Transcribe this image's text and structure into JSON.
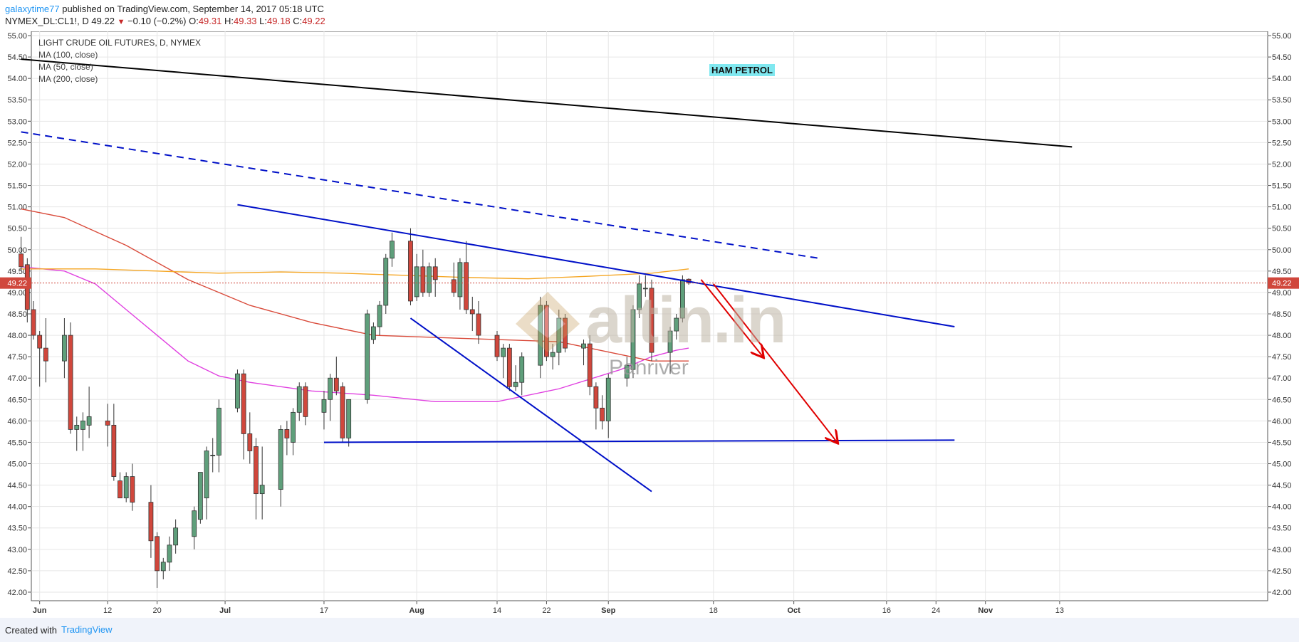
{
  "header": {
    "author": "galaxytime77",
    "published": "published on TradingView.com, September 14, 2017 05:18 UTC",
    "symbol": "NYMEX_DL:CL1!, D",
    "last": "49.22",
    "change": "−0.10 (−0.2%)",
    "o_label": "O:",
    "o": "49.31",
    "h_label": "H:",
    "h": "49.33",
    "l_label": "L:",
    "l": "49.18",
    "c_label": "C:",
    "c": "49.22"
  },
  "footer": {
    "created": "Created with",
    "brand": "TradingView"
  },
  "annotations": {
    "ham_label": "HAM PETROL",
    "watermark_main": "altin.in",
    "watermark_sub": "Panriver"
  },
  "colors": {
    "up": "#5f9f7b",
    "down": "#d0473c",
    "ma100": "#f5a623",
    "ma50": "#d94a3a",
    "ma200": "#e040e0",
    "trend": "#0010c8",
    "arrow": "#e00000"
  },
  "chart_data": {
    "type": "candlestick",
    "title": "LIGHT CRUDE OIL FUTURES, D, NYMEX",
    "legend": [
      "MA (100, close)",
      "MA (50, close)",
      "MA (200, close)"
    ],
    "ylim": [
      41.8,
      55.1
    ],
    "price_line": 49.22,
    "price_label": "49.22",
    "y_ticks": [
      "55.00",
      "54.50",
      "54.00",
      "53.50",
      "53.00",
      "52.50",
      "52.00",
      "51.50",
      "51.00",
      "50.50",
      "50.00",
      "49.50",
      "49.00",
      "48.50",
      "48.00",
      "47.50",
      "47.00",
      "46.50",
      "46.00",
      "45.50",
      "45.00",
      "44.50",
      "44.00",
      "43.50",
      "43.00",
      "42.50",
      "42.00"
    ],
    "x_ticks": [
      {
        "label": "Jun",
        "d": 1
      },
      {
        "label": "12",
        "d": 12
      },
      {
        "label": "20",
        "d": 20
      },
      {
        "label": "Jul",
        "d": 31
      },
      {
        "label": "17",
        "d": 47
      },
      {
        "label": "Aug",
        "d": 62
      },
      {
        "label": "14",
        "d": 75
      },
      {
        "label": "22",
        "d": 83
      },
      {
        "label": "Sep",
        "d": 93
      },
      {
        "label": "18",
        "d": 110
      },
      {
        "label": "Oct",
        "d": 123
      },
      {
        "label": "16",
        "d": 138
      },
      {
        "label": "24",
        "d": 146
      },
      {
        "label": "Nov",
        "d": 154
      },
      {
        "label": "13",
        "d": 166
      }
    ],
    "candles": [
      {
        "d": -2,
        "o": 49.9,
        "h": 50.3,
        "l": 49.5,
        "c": 49.6
      },
      {
        "d": -1,
        "o": 49.65,
        "h": 49.8,
        "l": 48.3,
        "c": 48.6
      },
      {
        "d": 0,
        "o": 48.6,
        "h": 48.8,
        "l": 47.9,
        "c": 48.0
      },
      {
        "d": 1,
        "o": 48.0,
        "h": 48.1,
        "l": 46.8,
        "c": 47.7
      },
      {
        "d": 2,
        "o": 47.7,
        "h": 48.4,
        "l": 46.9,
        "c": 47.4
      },
      {
        "d": 5,
        "o": 47.4,
        "h": 48.4,
        "l": 47.0,
        "c": 48.0
      },
      {
        "d": 6,
        "o": 48.0,
        "h": 48.3,
        "l": 45.7,
        "c": 45.8
      },
      {
        "d": 7,
        "o": 45.8,
        "h": 46.1,
        "l": 45.3,
        "c": 45.9
      },
      {
        "d": 8,
        "o": 45.8,
        "h": 46.2,
        "l": 45.3,
        "c": 46.0
      },
      {
        "d": 9,
        "o": 45.9,
        "h": 46.8,
        "l": 45.6,
        "c": 46.1
      },
      {
        "d": 12,
        "o": 46.0,
        "h": 46.4,
        "l": 45.4,
        "c": 45.9
      },
      {
        "d": 13,
        "o": 45.9,
        "h": 46.4,
        "l": 44.6,
        "c": 44.7
      },
      {
        "d": 14,
        "o": 44.6,
        "h": 44.8,
        "l": 44.2,
        "c": 44.2
      },
      {
        "d": 15,
        "o": 44.2,
        "h": 44.8,
        "l": 44.1,
        "c": 44.7
      },
      {
        "d": 16,
        "o": 44.7,
        "h": 45.0,
        "l": 43.9,
        "c": 44.1
      },
      {
        "d": 19,
        "o": 44.1,
        "h": 44.5,
        "l": 42.8,
        "c": 43.2
      },
      {
        "d": 20,
        "o": 43.3,
        "h": 43.4,
        "l": 42.1,
        "c": 42.5
      },
      {
        "d": 21,
        "o": 42.5,
        "h": 42.8,
        "l": 42.3,
        "c": 42.7
      },
      {
        "d": 22,
        "o": 42.7,
        "h": 43.3,
        "l": 42.5,
        "c": 43.1
      },
      {
        "d": 23,
        "o": 43.1,
        "h": 43.7,
        "l": 42.9,
        "c": 43.5
      },
      {
        "d": 26,
        "o": 43.3,
        "h": 44.0,
        "l": 43.0,
        "c": 43.9
      },
      {
        "d": 27,
        "o": 43.7,
        "h": 44.8,
        "l": 43.6,
        "c": 44.8
      },
      {
        "d": 28,
        "o": 44.2,
        "h": 45.4,
        "l": 43.7,
        "c": 45.3
      },
      {
        "d": 29,
        "o": 45.2,
        "h": 45.6,
        "l": 44.8,
        "c": 45.2
      },
      {
        "d": 30,
        "o": 45.2,
        "h": 46.5,
        "l": 44.8,
        "c": 46.3
      },
      {
        "d": 33,
        "o": 46.3,
        "h": 47.2,
        "l": 46.2,
        "c": 47.1
      },
      {
        "d": 34,
        "o": 47.1,
        "h": 47.2,
        "l": 45.1,
        "c": 45.7
      },
      {
        "d": 35,
        "o": 45.7,
        "h": 46.2,
        "l": 45.0,
        "c": 45.3
      },
      {
        "d": 36,
        "o": 45.4,
        "h": 45.6,
        "l": 43.7,
        "c": 44.3
      },
      {
        "d": 37,
        "o": 44.3,
        "h": 45.4,
        "l": 43.7,
        "c": 44.5
      },
      {
        "d": 40,
        "o": 44.4,
        "h": 45.9,
        "l": 44.0,
        "c": 45.8
      },
      {
        "d": 41,
        "o": 45.8,
        "h": 46.0,
        "l": 45.2,
        "c": 45.6
      },
      {
        "d": 42,
        "o": 45.5,
        "h": 46.3,
        "l": 45.2,
        "c": 46.2
      },
      {
        "d": 43,
        "o": 46.2,
        "h": 46.9,
        "l": 46.0,
        "c": 46.8
      },
      {
        "d": 44,
        "o": 46.8,
        "h": 46.9,
        "l": 45.9,
        "c": 46.1
      },
      {
        "d": 47,
        "o": 46.2,
        "h": 46.7,
        "l": 45.8,
        "c": 46.5
      },
      {
        "d": 48,
        "o": 46.5,
        "h": 47.1,
        "l": 46.0,
        "c": 47.0
      },
      {
        "d": 49,
        "o": 47.0,
        "h": 47.5,
        "l": 46.6,
        "c": 46.7
      },
      {
        "d": 50,
        "o": 46.8,
        "h": 46.9,
        "l": 45.5,
        "c": 45.6
      },
      {
        "d": 51,
        "o": 45.6,
        "h": 46.5,
        "l": 45.4,
        "c": 46.5
      },
      {
        "d": 54,
        "o": 46.5,
        "h": 48.6,
        "l": 46.4,
        "c": 48.5
      },
      {
        "d": 55,
        "o": 47.9,
        "h": 48.3,
        "l": 47.8,
        "c": 48.2
      },
      {
        "d": 56,
        "o": 48.2,
        "h": 48.8,
        "l": 48.0,
        "c": 48.7
      },
      {
        "d": 57,
        "o": 48.7,
        "h": 49.9,
        "l": 48.5,
        "c": 49.8
      },
      {
        "d": 58,
        "o": 49.8,
        "h": 50.4,
        "l": 49.6,
        "c": 50.2
      },
      {
        "d": 61,
        "o": 50.2,
        "h": 50.5,
        "l": 48.7,
        "c": 48.8
      },
      {
        "d": 62,
        "o": 48.9,
        "h": 49.9,
        "l": 48.8,
        "c": 49.6
      },
      {
        "d": 63,
        "o": 49.6,
        "h": 50.0,
        "l": 48.9,
        "c": 49.0
      },
      {
        "d": 64,
        "o": 49.0,
        "h": 49.7,
        "l": 48.9,
        "c": 49.6
      },
      {
        "d": 65,
        "o": 49.6,
        "h": 49.8,
        "l": 48.9,
        "c": 49.3
      },
      {
        "d": 68,
        "o": 49.3,
        "h": 49.7,
        "l": 48.9,
        "c": 49.0
      },
      {
        "d": 69,
        "o": 48.9,
        "h": 49.8,
        "l": 48.6,
        "c": 49.7
      },
      {
        "d": 70,
        "o": 49.7,
        "h": 50.2,
        "l": 48.5,
        "c": 48.6
      },
      {
        "d": 71,
        "o": 48.6,
        "h": 48.9,
        "l": 48.1,
        "c": 48.5
      },
      {
        "d": 72,
        "o": 48.5,
        "h": 48.8,
        "l": 47.8,
        "c": 48.0
      },
      {
        "d": 75,
        "o": 48.0,
        "h": 48.1,
        "l": 47.4,
        "c": 47.5
      },
      {
        "d": 76,
        "o": 47.5,
        "h": 47.8,
        "l": 47.0,
        "c": 47.7
      },
      {
        "d": 77,
        "o": 47.7,
        "h": 47.8,
        "l": 46.7,
        "c": 46.8
      },
      {
        "d": 78,
        "o": 46.8,
        "h": 47.3,
        "l": 46.7,
        "c": 46.9
      },
      {
        "d": 79,
        "o": 46.9,
        "h": 47.6,
        "l": 46.6,
        "c": 47.5
      },
      {
        "d": 82,
        "o": 47.3,
        "h": 48.9,
        "l": 47.0,
        "c": 48.7
      },
      {
        "d": 83,
        "o": 48.7,
        "h": 48.8,
        "l": 47.4,
        "c": 47.5
      },
      {
        "d": 84,
        "o": 47.5,
        "h": 47.8,
        "l": 47.2,
        "c": 47.6
      },
      {
        "d": 85,
        "o": 47.6,
        "h": 48.6,
        "l": 47.3,
        "c": 48.4
      },
      {
        "d": 86,
        "o": 48.4,
        "h": 48.5,
        "l": 47.6,
        "c": 47.7
      },
      {
        "d": 89,
        "o": 47.7,
        "h": 47.9,
        "l": 47.3,
        "c": 47.8
      },
      {
        "d": 90,
        "o": 47.8,
        "h": 48.0,
        "l": 46.6,
        "c": 46.8
      },
      {
        "d": 91,
        "o": 46.8,
        "h": 46.9,
        "l": 45.8,
        "c": 46.3
      },
      {
        "d": 92,
        "o": 46.3,
        "h": 46.6,
        "l": 45.8,
        "c": 46.0
      },
      {
        "d": 93,
        "o": 46.0,
        "h": 47.1,
        "l": 45.6,
        "c": 47.0
      },
      {
        "d": 96,
        "o": 47.0,
        "h": 47.5,
        "l": 46.8,
        "c": 47.3
      },
      {
        "d": 97,
        "o": 47.2,
        "h": 48.7,
        "l": 47.0,
        "c": 48.6
      },
      {
        "d": 98,
        "o": 48.6,
        "h": 49.4,
        "l": 48.4,
        "c": 49.2
      },
      {
        "d": 99,
        "o": 49.1,
        "h": 49.4,
        "l": 48.9,
        "c": 49.1
      },
      {
        "d": 100,
        "o": 49.1,
        "h": 49.3,
        "l": 47.4,
        "c": 47.6
      },
      {
        "d": 103,
        "o": 47.6,
        "h": 48.2,
        "l": 47.1,
        "c": 48.1
      },
      {
        "d": 104,
        "o": 48.1,
        "h": 48.5,
        "l": 47.9,
        "c": 48.4
      },
      {
        "d": 105,
        "o": 48.4,
        "h": 49.4,
        "l": 48.3,
        "c": 49.3
      },
      {
        "d": 106,
        "o": 49.31,
        "h": 49.33,
        "l": 49.18,
        "c": 49.22
      }
    ],
    "ma100": [
      [
        -2,
        49.55
      ],
      [
        10,
        49.55
      ],
      [
        20,
        49.5
      ],
      [
        30,
        49.45
      ],
      [
        40,
        49.48
      ],
      [
        50,
        49.45
      ],
      [
        60,
        49.4
      ],
      [
        70,
        49.35
      ],
      [
        80,
        49.32
      ],
      [
        90,
        49.38
      ],
      [
        100,
        49.45
      ],
      [
        106,
        49.55
      ]
    ],
    "ma50": [
      [
        -2,
        50.95
      ],
      [
        5,
        50.75
      ],
      [
        15,
        50.1
      ],
      [
        25,
        49.3
      ],
      [
        35,
        48.7
      ],
      [
        45,
        48.3
      ],
      [
        55,
        48.0
      ],
      [
        65,
        47.95
      ],
      [
        75,
        47.9
      ],
      [
        85,
        47.85
      ],
      [
        95,
        47.55
      ],
      [
        100,
        47.4
      ],
      [
        106,
        47.4
      ]
    ],
    "ma200": [
      [
        -2,
        49.6
      ],
      [
        5,
        49.5
      ],
      [
        10,
        49.2
      ],
      [
        15,
        48.6
      ],
      [
        20,
        48.0
      ],
      [
        25,
        47.4
      ],
      [
        30,
        47.05
      ],
      [
        35,
        46.9
      ],
      [
        45,
        46.7
      ],
      [
        55,
        46.6
      ],
      [
        65,
        46.45
      ],
      [
        75,
        46.45
      ],
      [
        85,
        46.75
      ],
      [
        95,
        47.2
      ],
      [
        100,
        47.5
      ],
      [
        104,
        47.65
      ],
      [
        106,
        47.7
      ]
    ],
    "trendlines": [
      {
        "style": "solid",
        "color": "#000000",
        "from": [
          -2,
          54.45
        ],
        "to": [
          168,
          52.4
        ]
      },
      {
        "style": "dashed",
        "color": "#0010c8",
        "from": [
          -2,
          52.75
        ],
        "to": [
          127,
          49.8
        ]
      },
      {
        "style": "solid",
        "color": "#0010c8",
        "from": [
          33,
          51.05
        ],
        "to": [
          149,
          48.2
        ]
      },
      {
        "style": "solid",
        "color": "#0010c8",
        "from": [
          61,
          48.4
        ],
        "to": [
          100,
          44.35
        ]
      },
      {
        "style": "solid",
        "color": "#0010c8",
        "from": [
          47,
          45.5
        ],
        "to": [
          149,
          45.55
        ]
      }
    ],
    "arrows": [
      {
        "from": [
          108,
          49.3
        ],
        "to": [
          118,
          47.5
        ]
      },
      {
        "from": [
          110,
          49.2
        ],
        "to": [
          130,
          45.5
        ]
      }
    ]
  }
}
